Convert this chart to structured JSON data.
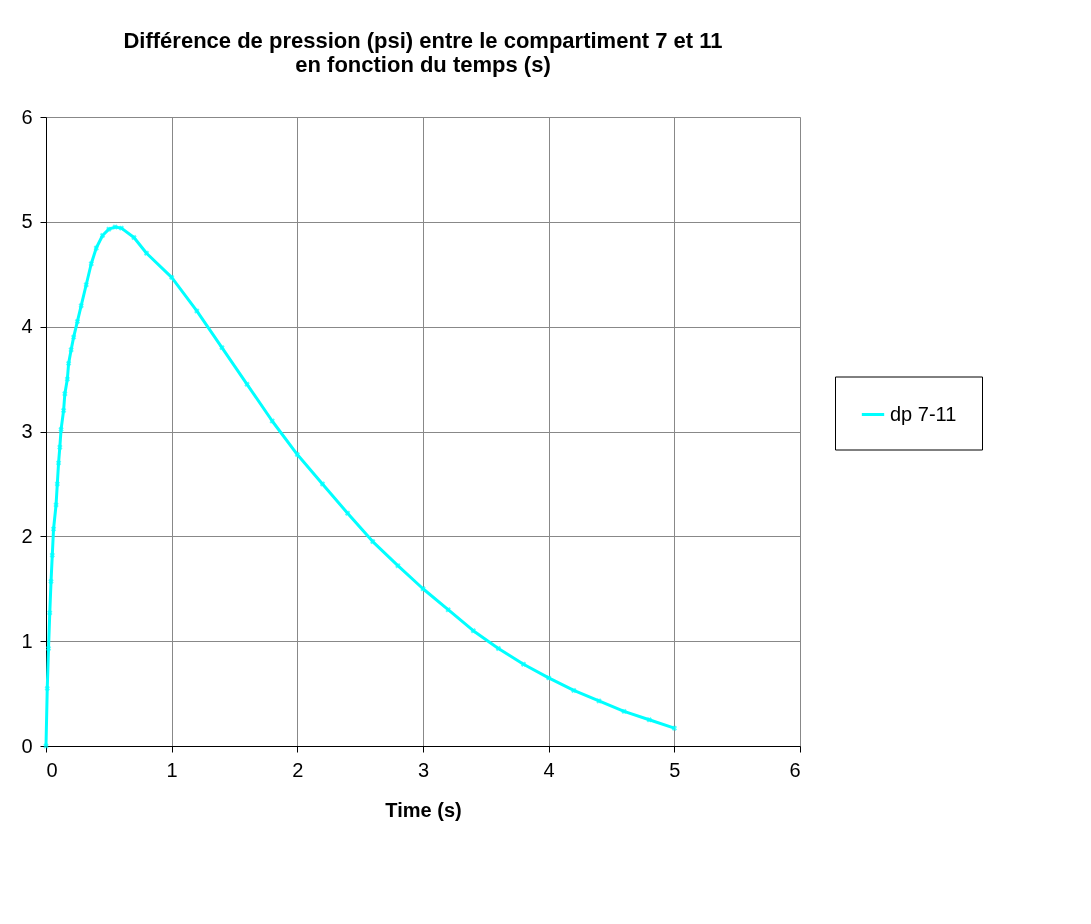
{
  "chart_data": {
    "type": "line",
    "title": "Différence de pression (psi) entre le compartiment 7 et 11 en fonction du temps (s)",
    "xlabel": "Time (s)",
    "x": [
      0,
      0.01,
      0.02,
      0.03,
      0.04,
      0.05,
      0.06,
      0.08,
      0.09,
      0.1,
      0.11,
      0.12,
      0.14,
      0.15,
      0.17,
      0.18,
      0.2,
      0.22,
      0.25,
      0.28,
      0.32,
      0.36,
      0.4,
      0.45,
      0.5,
      0.55,
      0.6,
      0.7,
      0.8,
      1.0,
      1.2,
      1.4,
      1.6,
      1.8,
      2.0,
      2.2,
      2.4,
      2.6,
      2.8,
      3.0,
      3.2,
      3.4,
      3.6,
      3.8,
      4.0,
      4.2,
      4.4,
      4.6,
      4.8,
      5.0
    ],
    "series": [
      {
        "name": "dp 7-11",
        "color": "#00ffff",
        "values": [
          0,
          0.55,
          0.93,
          1.27,
          1.57,
          1.82,
          2.07,
          2.3,
          2.5,
          2.7,
          2.85,
          3.02,
          3.2,
          3.36,
          3.5,
          3.65,
          3.78,
          3.9,
          4.05,
          4.2,
          4.4,
          4.6,
          4.75,
          4.87,
          4.93,
          4.95,
          4.94,
          4.85,
          4.7,
          4.47,
          4.15,
          3.8,
          3.45,
          3.1,
          2.78,
          2.5,
          2.22,
          1.95,
          1.72,
          1.5,
          1.3,
          1.1,
          0.93,
          0.78,
          0.65,
          0.53,
          0.43,
          0.33,
          0.25,
          0.17
        ]
      }
    ],
    "xlim": [
      0,
      6
    ],
    "xticks": [
      0,
      1,
      2,
      3,
      4,
      5,
      6
    ],
    "ylim": [
      0,
      6
    ],
    "yticks": [
      0,
      1,
      2,
      3,
      4,
      5,
      6
    ],
    "grid": true,
    "legend": "right",
    "marker": "cross",
    "line_style": "solid"
  }
}
